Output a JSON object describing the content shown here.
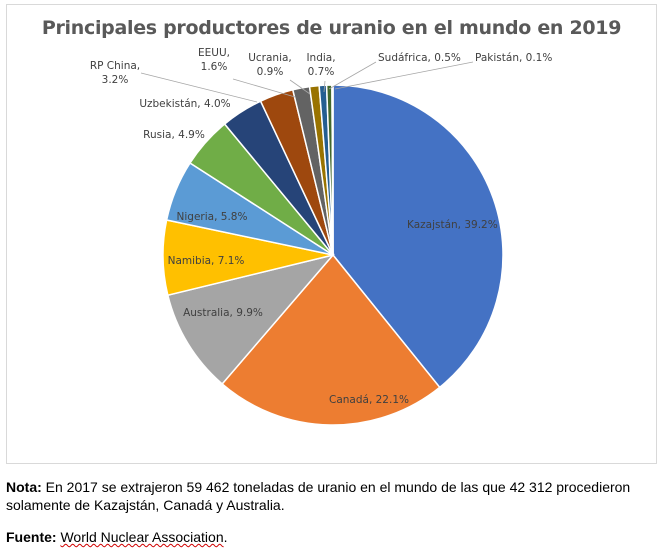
{
  "chart_data": {
    "type": "pie",
    "title": "Principales productores de uranio en el mundo en 2019",
    "slices": [
      {
        "label": "Kazajstán",
        "value": 39.2,
        "value_text": "39.2%",
        "color": "#4472C4"
      },
      {
        "label": "Canadá",
        "value": 22.1,
        "value_text": "22.1%",
        "color": "#ED7D31"
      },
      {
        "label": "Australia",
        "value": 9.9,
        "value_text": "9.9%",
        "color": "#A5A5A5"
      },
      {
        "label": "Namibia",
        "value": 7.1,
        "value_text": "7.1%",
        "color": "#FFC000"
      },
      {
        "label": "Nigeria",
        "value": 5.8,
        "value_text": "5.8%",
        "color": "#5B9BD5"
      },
      {
        "label": "Rusia",
        "value": 4.9,
        "value_text": "4.9%",
        "color": "#70AD47"
      },
      {
        "label": "Uzbekistán",
        "value": 4.0,
        "value_text": "4.0%",
        "color": "#264478"
      },
      {
        "label": "RP China",
        "value": 3.2,
        "value_text": "3.2%",
        "color": "#9E480E"
      },
      {
        "label": "EEUU",
        "value": 1.6,
        "value_text": "1.6%",
        "color": "#636363"
      },
      {
        "label": "Ucrania",
        "value": 0.9,
        "value_text": "0.9%",
        "color": "#997300"
      },
      {
        "label": "India",
        "value": 0.7,
        "value_text": "0.7%",
        "color": "#255E91"
      },
      {
        "label": "Sudáfrica",
        "value": 0.5,
        "value_text": "0.5%",
        "color": "#43682B"
      },
      {
        "label": "Pakistán",
        "value": 0.1,
        "value_text": "0.1%",
        "color": "#698ED0"
      }
    ],
    "legend": "none"
  },
  "note": {
    "label": "Nota:",
    "text": " En 2017 se extrajeron 59 462 toneladas de uranio en el mundo de las que 42 312 procedieron solamente de Kazajstán, Canadá y Australia."
  },
  "source": {
    "label": "Fuente:",
    "text": "World Nuclear Association"
  },
  "source_end": "."
}
